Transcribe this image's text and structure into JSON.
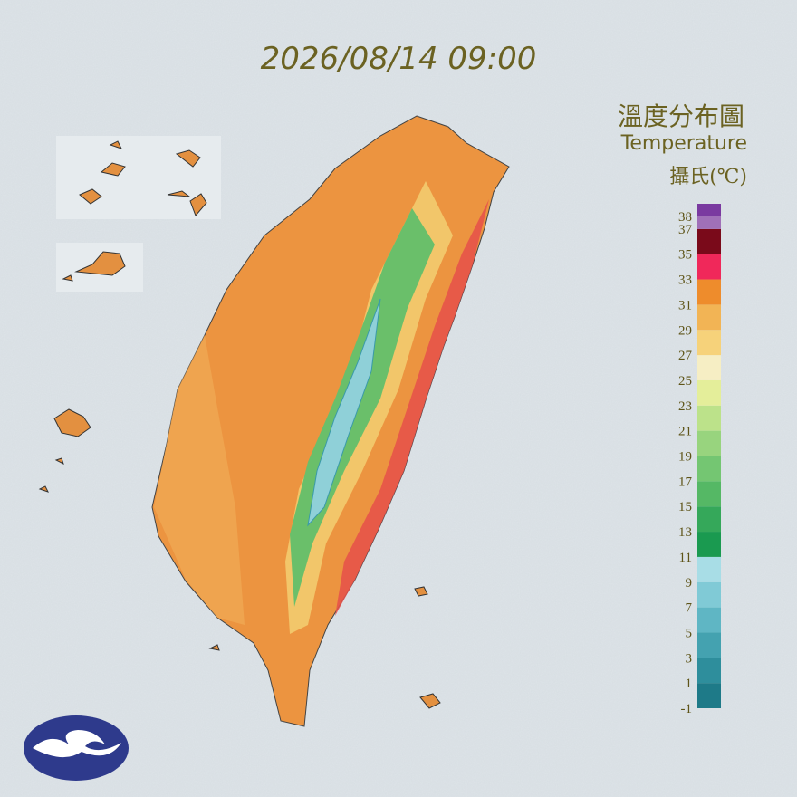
{
  "timestamp": "2026/08/14 09:00",
  "legend": {
    "title": "溫度分布圖",
    "subtitle": "Temperature",
    "unit": "攝氏(℃)",
    "ticks": [
      38,
      37,
      35,
      33,
      31,
      29,
      27,
      25,
      23,
      21,
      19,
      17,
      15,
      13,
      11,
      9,
      7,
      5,
      3,
      1,
      -1
    ],
    "lim": [
      -1,
      39
    ],
    "bins": [
      -1,
      1,
      3,
      5,
      7,
      9,
      11,
      13,
      15,
      17,
      19,
      21,
      23,
      25,
      27,
      29,
      31,
      33,
      35,
      37,
      38,
      39
    ],
    "colors": [
      "#1e7a88",
      "#2e8e9c",
      "#44a2b0",
      "#5fb6c4",
      "#80cad6",
      "#a8dde6",
      "#1a9a50",
      "#35a85a",
      "#55b865",
      "#74c672",
      "#98d47e",
      "#bce28a",
      "#e4ee9a",
      "#f6eec4",
      "#f6d27a",
      "#f2b455",
      "#ee8c2c",
      "#f0285a",
      "#7a0a1a",
      "#a070b8",
      "#7a3aa0"
    ]
  }
}
